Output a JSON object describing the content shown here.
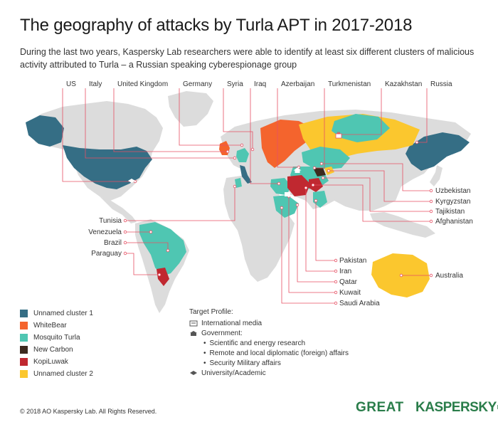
{
  "title": "The geography of attacks by Turla APT in 2017-2018",
  "subtitle": "During the last two years, Kaspersky Lab researchers were able to identify at least six different clusters of malicious activity attributed to Turla – a Russian speaking cyberespionage group",
  "colors": {
    "land": "#dcdcdc",
    "callout": "#e65064",
    "unnamed1": "#356e85",
    "whitebear": "#f4642d",
    "mosquito": "#4fc6b2",
    "newcarbon": "#3d2a1f",
    "kopiluwak": "#c02830",
    "unnamed2": "#fbc72e"
  },
  "countries_top": [
    "US",
    "Italy",
    "United Kingdom",
    "Germany",
    "Syria",
    "Iraq",
    "Azerbaijan",
    "Turkmenistan",
    "Kazakhstan",
    "Russia"
  ],
  "countries_right": [
    "Uzbekistan",
    "Kyrgyzstan",
    "Tajikistan",
    "Afghanistan"
  ],
  "countries_left": [
    "Tunisia",
    "Venezuela",
    "Brazil",
    "Paraguay"
  ],
  "countries_bottom": [
    "Pakistan",
    "Iran",
    "Qatar",
    "Kuwait",
    "Saudi Arabia"
  ],
  "australia": "Australia",
  "legend": [
    {
      "label": "Unnamed cluster 1",
      "color": "#356e85"
    },
    {
      "label": "WhiteBear",
      "color": "#f4642d"
    },
    {
      "label": "Mosquito Turla",
      "color": "#4fc6b2"
    },
    {
      "label": "New Carbon",
      "color": "#3d2a1f"
    },
    {
      "label": "KopiLuwak",
      "color": "#c02830"
    },
    {
      "label": "Unnamed cluster 2",
      "color": "#fbc72e"
    }
  ],
  "target_profile": {
    "heading": "Target Profile:",
    "items": [
      "International media",
      "Government:",
      "Scientific and energy research",
      "Remote and local diplomatic (foreign) affairs",
      "Security Military affairs",
      "University/Academic"
    ]
  },
  "footer": "© 2018 AO Kaspersky Lab. All Rights Reserved.",
  "brand_great": "GREAT",
  "brand_kaspersky": "KASPERSKY",
  "brand_lab": "lab",
  "map_icons": [
    "briefcase-icon",
    "building-icon",
    "newspaper-icon",
    "graduation-cap-icon"
  ]
}
